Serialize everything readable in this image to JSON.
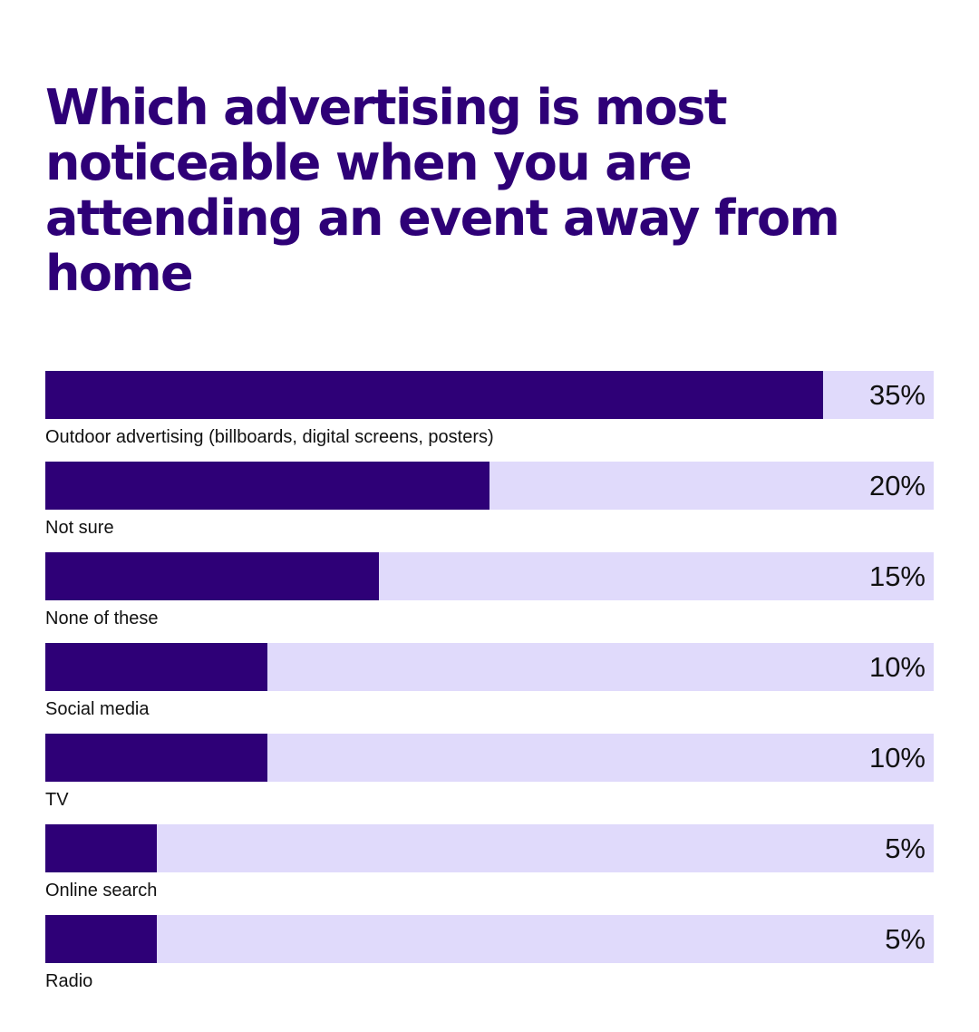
{
  "colors": {
    "title": "#2e0077",
    "bar_fill": "#2e0077",
    "bar_track": "#e0dafb",
    "text": "#111111"
  },
  "chart_data": {
    "type": "bar",
    "orientation": "horizontal",
    "title": "Which advertising is most noticeable when you are attending an event away from home",
    "categories": [
      "Outdoor advertising (billboards, digital screens, posters)",
      "Not sure",
      "None of these",
      "Social media",
      "TV",
      "Online search",
      "Radio"
    ],
    "values": [
      35,
      20,
      15,
      10,
      10,
      5,
      5
    ],
    "value_labels": [
      "35%",
      "20%",
      "15%",
      "10%",
      "10%",
      "5%",
      "5%"
    ],
    "unit": "%",
    "xlim": [
      0,
      40
    ],
    "grid": false,
    "legend": "none"
  }
}
